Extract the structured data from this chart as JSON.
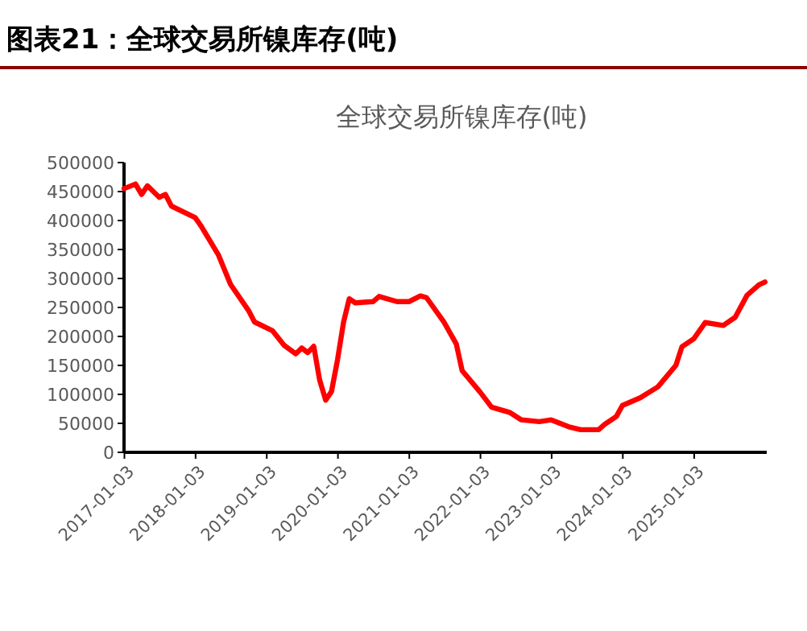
{
  "chart_data": {
    "type": "line",
    "title": "图表21：全球交易所镍库存(吨)",
    "subtitle": "全球交易所镍库存(吨)",
    "xlim": [
      "2017-01",
      "2026-01-10"
    ],
    "xticks": [
      "2017-01-03",
      "2018-01-03",
      "2019-01-03",
      "2020-01-03",
      "2021-01-03",
      "2022-01-03",
      "2023-01-03",
      "2024-01-03",
      "2025-01-03"
    ],
    "ylim": [
      0,
      500000
    ],
    "yticks": [
      0,
      50000,
      100000,
      150000,
      200000,
      250000,
      300000,
      350000,
      400000,
      450000,
      500000
    ],
    "grid": false,
    "marker": "none",
    "line_style": "solid",
    "series": [
      {
        "color": "#ff0000",
        "x": [
          "2017-01",
          "2017-03",
          "2017-04",
          "2017-05",
          "2017-07",
          "2017-08",
          "2017-09",
          "2018-01",
          "2018-02",
          "2018-05",
          "2018-07",
          "2018-10",
          "2018-11",
          "2019-02",
          "2019-04",
          "2019-06",
          "2019-07",
          "2019-08",
          "2019-09",
          "2019-10",
          "2019-11",
          "2019-12",
          "2020-01",
          "2020-02",
          "2020-03",
          "2020-04",
          "2020-07",
          "2020-08",
          "2020-11",
          "2021-01",
          "2021-03",
          "2021-04",
          "2021-07",
          "2021-09",
          "2021-10",
          "2022-01",
          "2022-03",
          "2022-06",
          "2022-08",
          "2022-11",
          "2023-01",
          "2023-04",
          "2023-06",
          "2023-09",
          "2023-10",
          "2023-12",
          "2024-01",
          "2024-04",
          "2024-07",
          "2024-10",
          "2024-11",
          "2025-01",
          "2025-03",
          "2025-06",
          "2025-08",
          "2025-10",
          "2025-12",
          "2026-01"
        ],
        "values": [
          455000,
          463000,
          445000,
          460000,
          440000,
          445000,
          425000,
          405000,
          390000,
          340000,
          290000,
          245000,
          225000,
          210000,
          185000,
          170000,
          180000,
          172000,
          183000,
          125000,
          90000,
          105000,
          160000,
          225000,
          265000,
          258000,
          260000,
          269000,
          260000,
          260000,
          270000,
          267000,
          224000,
          187000,
          141000,
          104000,
          78000,
          69000,
          56000,
          53000,
          56000,
          44000,
          39000,
          39000,
          48000,
          62000,
          81000,
          94000,
          113000,
          150000,
          182000,
          196000,
          224000,
          219000,
          233000,
          271000,
          289000,
          294000
        ]
      }
    ]
  }
}
